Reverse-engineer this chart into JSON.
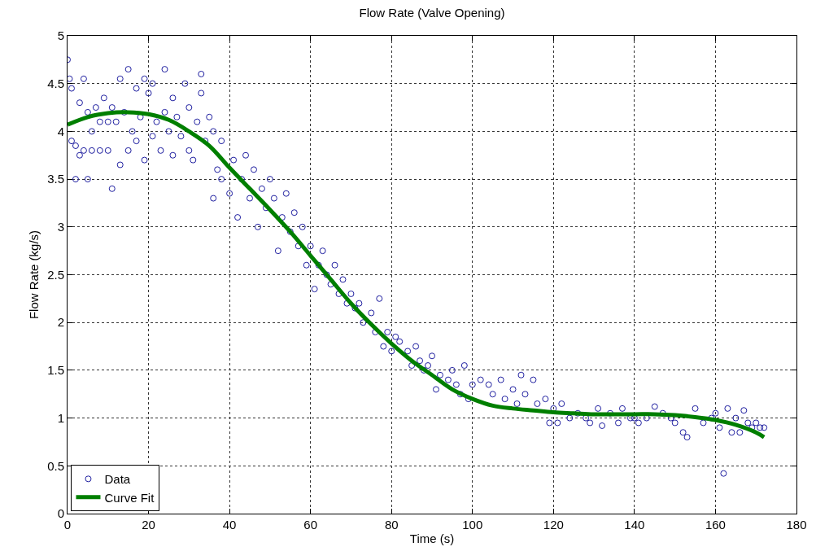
{
  "chart_data": {
    "type": "scatter",
    "title": "Flow Rate (Valve Opening)",
    "xlabel": "Time (s)",
    "ylabel": "Flow Rate (kg/s)",
    "xlim": [
      0,
      180
    ],
    "xticks": [
      0,
      20,
      40,
      60,
      80,
      100,
      120,
      140,
      160,
      180
    ],
    "ylim": [
      0,
      5
    ],
    "yticks": [
      0,
      0.5,
      1,
      1.5,
      2,
      2.5,
      3,
      3.5,
      4,
      4.5,
      5
    ],
    "grid": true,
    "legend": "bottom left",
    "series": [
      {
        "name": "Data",
        "marker": "circle",
        "color": "#1f1fa0",
        "x": [
          0,
          0.5,
          1,
          1,
          2,
          2,
          3,
          3,
          4,
          4,
          5,
          5,
          6,
          6,
          7,
          8,
          8,
          9,
          10,
          10,
          11,
          11,
          12,
          13,
          13,
          14,
          15,
          15,
          16,
          17,
          17,
          18,
          19,
          19,
          20,
          21,
          21,
          22,
          23,
          24,
          24,
          25,
          26,
          26,
          27,
          28,
          29,
          30,
          30,
          31,
          32,
          33,
          33,
          34,
          35,
          36,
          36,
          37,
          38,
          38,
          40,
          41,
          42,
          43,
          44,
          45,
          46,
          47,
          48,
          49,
          50,
          51,
          52,
          53,
          54,
          55,
          56,
          57,
          58,
          59,
          60,
          61,
          62,
          63,
          64,
          65,
          66,
          67,
          68,
          69,
          70,
          71,
          72,
          73,
          75,
          76,
          77,
          78,
          79,
          80,
          81,
          82,
          84,
          85,
          86,
          87,
          88,
          89,
          90,
          91,
          92,
          94,
          95,
          96,
          97,
          98,
          99,
          100,
          102,
          104,
          105,
          107,
          108,
          110,
          111,
          112,
          113,
          115,
          116,
          118,
          119,
          120,
          121,
          122,
          124,
          126,
          128,
          129,
          131,
          132,
          134,
          136,
          137,
          139,
          140,
          141,
          143,
          145,
          147,
          149,
          150,
          152,
          153,
          155,
          157,
          159,
          160,
          161,
          162,
          163,
          164,
          165,
          166,
          167,
          168,
          169,
          170,
          171,
          172
        ],
        "values": [
          4.75,
          4.55,
          4.45,
          3.9,
          3.85,
          3.5,
          4.3,
          3.75,
          3.8,
          4.55,
          3.5,
          4.2,
          4.0,
          3.8,
          4.25,
          3.8,
          4.1,
          4.35,
          3.8,
          4.1,
          3.4,
          4.25,
          4.1,
          4.55,
          3.65,
          4.2,
          3.8,
          4.65,
          4.0,
          3.9,
          4.45,
          4.15,
          3.7,
          4.55,
          4.4,
          3.95,
          4.5,
          4.1,
          3.8,
          4.65,
          4.2,
          4.0,
          3.75,
          4.35,
          4.15,
          3.95,
          4.5,
          3.8,
          4.25,
          3.7,
          4.1,
          4.6,
          4.4,
          3.9,
          4.15,
          3.3,
          4.0,
          3.6,
          3.5,
          3.9,
          3.35,
          3.7,
          3.1,
          3.5,
          3.75,
          3.3,
          3.6,
          3.0,
          3.4,
          3.2,
          3.5,
          3.3,
          2.75,
          3.1,
          3.35,
          2.95,
          3.15,
          2.8,
          3.0,
          2.6,
          2.8,
          2.35,
          2.6,
          2.75,
          2.5,
          2.4,
          2.6,
          2.3,
          2.45,
          2.2,
          2.3,
          2.15,
          2.2,
          2.0,
          2.1,
          1.9,
          2.25,
          1.75,
          1.9,
          1.7,
          1.85,
          1.8,
          1.7,
          1.55,
          1.75,
          1.6,
          1.5,
          1.55,
          1.65,
          1.3,
          1.45,
          1.4,
          1.5,
          1.35,
          1.25,
          1.55,
          1.2,
          1.35,
          1.4,
          1.35,
          1.25,
          1.4,
          1.2,
          1.3,
          1.15,
          1.45,
          1.25,
          1.4,
          1.15,
          1.2,
          0.95,
          1.1,
          0.95,
          1.15,
          1.0,
          1.05,
          1.0,
          0.95,
          1.1,
          0.92,
          1.05,
          0.95,
          1.1,
          1.0,
          1.0,
          0.95,
          1.0,
          1.12,
          1.05,
          1.0,
          0.95,
          0.85,
          0.8,
          1.1,
          0.95,
          1.0,
          1.05,
          0.9,
          0.42,
          1.1,
          0.85,
          1.0,
          0.85,
          1.08,
          0.95,
          0.9,
          0.95,
          0.9,
          0.9
        ]
      },
      {
        "name": "Curve Fit",
        "type": "line",
        "marker": "none",
        "line_style": "solid",
        "color": "#007f00",
        "x": [
          0,
          5,
          10,
          15,
          20,
          25,
          30,
          35,
          40,
          45,
          50,
          55,
          60,
          65,
          70,
          75,
          80,
          85,
          90,
          95,
          100,
          105,
          110,
          115,
          120,
          125,
          130,
          140,
          145,
          150,
          155,
          160,
          165,
          170,
          172
        ],
        "values": [
          4.07,
          4.15,
          4.19,
          4.2,
          4.18,
          4.12,
          4.0,
          3.85,
          3.62,
          3.4,
          3.18,
          2.95,
          2.7,
          2.45,
          2.2,
          1.98,
          1.78,
          1.6,
          1.45,
          1.3,
          1.2,
          1.13,
          1.1,
          1.08,
          1.06,
          1.05,
          1.04,
          1.04,
          1.04,
          1.03,
          1.01,
          0.98,
          0.93,
          0.85,
          0.8
        ]
      }
    ]
  }
}
